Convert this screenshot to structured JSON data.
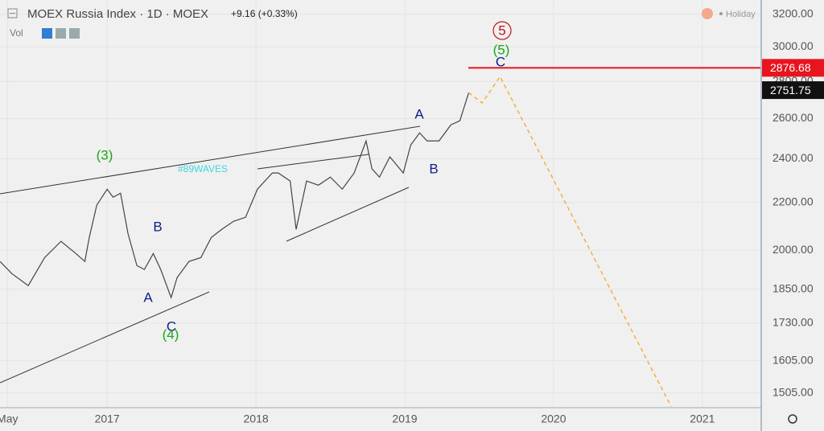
{
  "header": {
    "symbol": "MOEX Russia Index · 1D · MOEX",
    "change": "+9.16 (+0.33%)",
    "volume": "Vol",
    "status": "Holiday"
  },
  "chart_data": {
    "type": "line",
    "log_scale": true,
    "grid": true,
    "x": [
      2016.28,
      2016.36,
      2016.47,
      2016.58,
      2016.69,
      2016.79,
      2016.85,
      2016.88,
      2016.93,
      2017.0,
      2017.04,
      2017.09,
      2017.14,
      2017.2,
      2017.25,
      2017.31,
      2017.36,
      2017.43,
      2017.47,
      2017.55,
      2017.63,
      2017.7,
      2017.77,
      2017.85,
      2017.93,
      2018.01,
      2018.11,
      2018.15,
      2018.23,
      2018.27,
      2018.34,
      2018.42,
      2018.5,
      2018.58,
      2018.66,
      2018.74,
      2018.78,
      2018.83,
      2018.9,
      2018.99,
      2019.04,
      2019.1,
      2019.15,
      2019.23,
      2019.31,
      2019.37,
      2019.43
    ],
    "series": [
      {
        "color": "#444444",
        "values": [
          1956,
          1909,
          1864,
          1971,
          2036,
          1987,
          1956,
          2052,
          2188,
          2259,
          2223,
          2241,
          2068,
          1940,
          1925,
          1987,
          1925,
          1820,
          1894,
          1956,
          1971,
          2052,
          2085,
          2119,
          2136,
          2259,
          2333,
          2333,
          2296,
          2085,
          2296,
          2277,
          2314,
          2259,
          2333,
          2487,
          2352,
          2314,
          2409,
          2333,
          2467,
          2527,
          2487,
          2487,
          2568,
          2589,
          2738
        ]
      }
    ],
    "projection": {
      "color": "#f5a623",
      "x": [
        2019.43,
        2019.52,
        2019.64,
        2020.79
      ],
      "values": [
        2738,
        2682,
        2827,
        1465
      ]
    },
    "hline": {
      "value": 2876.68,
      "color": "#e8141e"
    },
    "last_price": 2751.75,
    "annotations": {
      "w3": "(3)",
      "b1": "B",
      "a1": "A",
      "c1": "C",
      "w4": "(4)",
      "tag": "#89WAVES",
      "a2": "A",
      "b2": "B",
      "w5": "(5)",
      "c2": "C",
      "big5": "5"
    },
    "xlim": [
      2016.28,
      2021.39
    ],
    "xticks": [
      {
        "value": 2016.33,
        "label": "May"
      },
      2017,
      2018,
      2019,
      2020,
      2021
    ],
    "ylim": [
      1464,
      3293
    ],
    "yticks": [
      {
        "value": 1505,
        "label": "1505.00"
      },
      {
        "value": 1605,
        "label": "1605.00"
      },
      {
        "value": 1730,
        "label": "1730.00"
      },
      {
        "value": 1850,
        "label": "1850.00"
      },
      {
        "value": 2000,
        "label": "2000.00"
      },
      {
        "value": 2200,
        "label": "2200.00"
      },
      {
        "value": 2400,
        "label": "2400.00"
      },
      {
        "value": 2600,
        "label": "2600.00"
      },
      {
        "value": 2800,
        "label": "2800.00"
      },
      {
        "value": 3000,
        "label": "3000.00"
      },
      {
        "value": 3200,
        "label": "3200.00"
      }
    ]
  }
}
